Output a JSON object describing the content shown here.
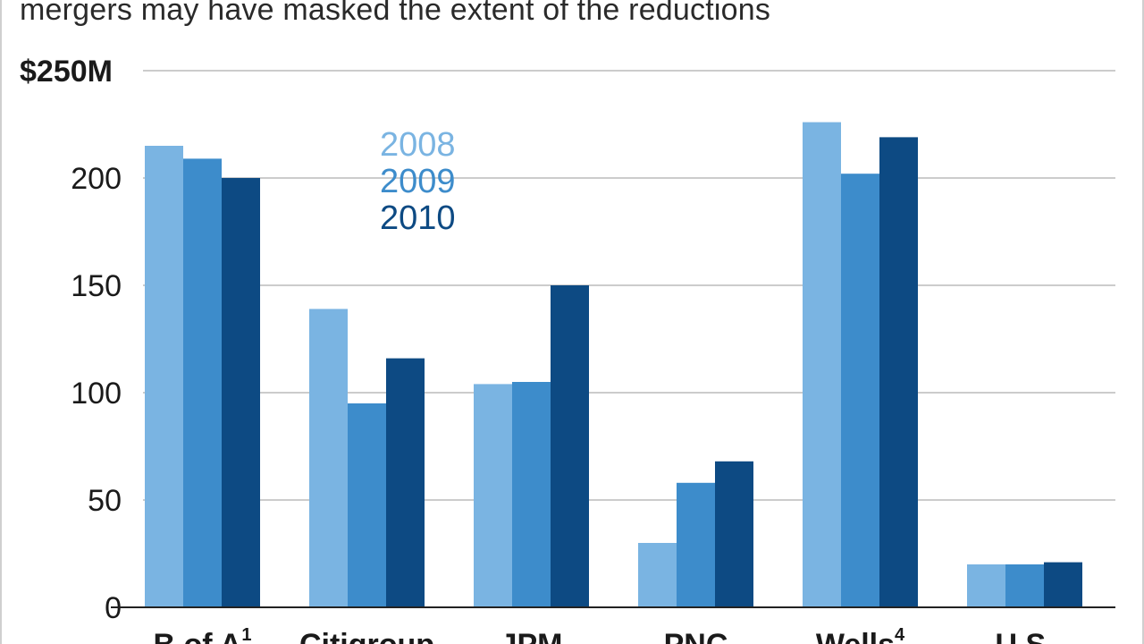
{
  "subtitle": "mergers may have masked the extent of the reductions",
  "colors": {
    "s2008": "#7ab4e2",
    "s2009": "#3d8ccb",
    "s2010": "#0d4a83",
    "grid": "#cccccc",
    "axis": "#222222"
  },
  "chart_data": {
    "type": "bar",
    "title": "mergers may have masked the extent of the reductions",
    "ylabel": "",
    "xlabel": "",
    "ylim": [
      0,
      250
    ],
    "yticks": [
      0,
      50,
      100,
      150,
      200,
      250
    ],
    "ytick_labels": [
      "0",
      "50",
      "100",
      "150",
      "200",
      "$250M"
    ],
    "categories": [
      {
        "name": "B of A",
        "sup": "1"
      },
      {
        "name": "Citigroup",
        "sup": ""
      },
      {
        "name": "JPM",
        "sup": ""
      },
      {
        "name": "PNC",
        "sup": ""
      },
      {
        "name": "Wells",
        "sup": "4"
      },
      {
        "name": "U.S.",
        "sup": ""
      }
    ],
    "series": [
      {
        "name": "2008",
        "color": "#7ab4e2",
        "values": [
          215,
          139,
          104,
          30,
          226,
          20
        ]
      },
      {
        "name": "2009",
        "color": "#3d8ccb",
        "values": [
          209,
          95,
          105,
          58,
          202,
          20
        ]
      },
      {
        "name": "2010",
        "color": "#0d4a83",
        "values": [
          200,
          116,
          150,
          68,
          219,
          21
        ]
      }
    ],
    "legend": {
      "placement": "top-center",
      "entries": [
        "2008",
        "2009",
        "2010"
      ]
    },
    "grid": true
  }
}
